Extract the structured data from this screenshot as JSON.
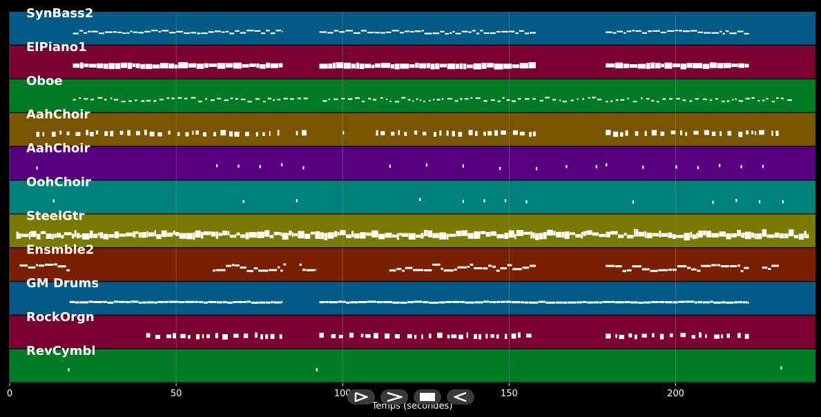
{
  "colors": {
    "background": "#000000",
    "grid": "#8a8a8a",
    "note": "#ffffff",
    "transport_bg": "#3a3a3a"
  },
  "axis": {
    "title": "Temps (secondes)",
    "xlim": [
      0,
      242
    ],
    "ticks": [
      0,
      50,
      100,
      150,
      200
    ]
  },
  "transport": [
    {
      "name": "play-icon",
      "label": "play"
    },
    {
      "name": "fast-forward-icon",
      "label": "fast forward"
    },
    {
      "name": "stop-icon",
      "label": "stop"
    },
    {
      "name": "rewind-icon",
      "label": "rewind"
    }
  ],
  "tracks": [
    {
      "name": "SynBass2",
      "color": "#005a85",
      "style": "line",
      "segments": [
        [
          19,
          82
        ],
        [
          93,
          158
        ],
        [
          179,
          222
        ]
      ]
    },
    {
      "name": "ElPiano1",
      "color": "#7a0030",
      "style": "block",
      "segments": [
        [
          19,
          82
        ],
        [
          93,
          158
        ],
        [
          179,
          222
        ]
      ]
    },
    {
      "name": "Oboe",
      "color": "#007a25",
      "style": "dash",
      "segments": [
        [
          19,
          90
        ],
        [
          94,
          178
        ],
        [
          179,
          235
        ]
      ]
    },
    {
      "name": "AahChoir",
      "color": "#7a5500",
      "style": "sparse",
      "segments": [
        [
          8,
          82
        ],
        [
          86,
          90
        ],
        [
          100,
          102
        ],
        [
          110,
          158
        ],
        [
          179,
          232
        ]
      ]
    },
    {
      "name": "AahChoir",
      "color": "#560080",
      "style": "ticks",
      "segments": [
        [
          8,
          14
        ],
        [
          62,
          88
        ],
        [
          114,
          125
        ],
        [
          136,
          147
        ],
        [
          158,
          176
        ],
        [
          179,
          190
        ],
        [
          200,
          226
        ]
      ]
    },
    {
      "name": "OohChoir",
      "color": "#00807a",
      "style": "ticks",
      "segments": [
        [
          13,
          17
        ],
        [
          70,
          71
        ],
        [
          86,
          93
        ],
        [
          123,
          124
        ],
        [
          136,
          155
        ],
        [
          187,
          189
        ],
        [
          211,
          232
        ]
      ]
    },
    {
      "name": "SteelGtr",
      "color": "#7a7a00",
      "style": "dense",
      "segments": [
        [
          2,
          240
        ]
      ]
    },
    {
      "name": "Ensmble2",
      "color": "#7a2000",
      "style": "melody",
      "segments": [
        [
          3,
          18
        ],
        [
          61,
          83
        ],
        [
          87,
          92
        ],
        [
          114,
          158
        ],
        [
          179,
          222
        ],
        [
          226,
          231
        ]
      ]
    },
    {
      "name": "GM Drums",
      "color": "#005a85",
      "style": "drums",
      "segments": [
        [
          18,
          82
        ],
        [
          93,
          222
        ]
      ]
    },
    {
      "name": "RockOrgn",
      "color": "#7a0030",
      "style": "sparse",
      "segments": [
        [
          41,
          82
        ],
        [
          93,
          158
        ],
        [
          179,
          222
        ]
      ]
    },
    {
      "name": "RevCymbl",
      "color": "#007a25",
      "style": "ticks",
      "segments": [
        [
          17.5,
          18
        ],
        [
          92,
          92.5
        ],
        [
          231.5,
          232
        ]
      ]
    }
  ]
}
